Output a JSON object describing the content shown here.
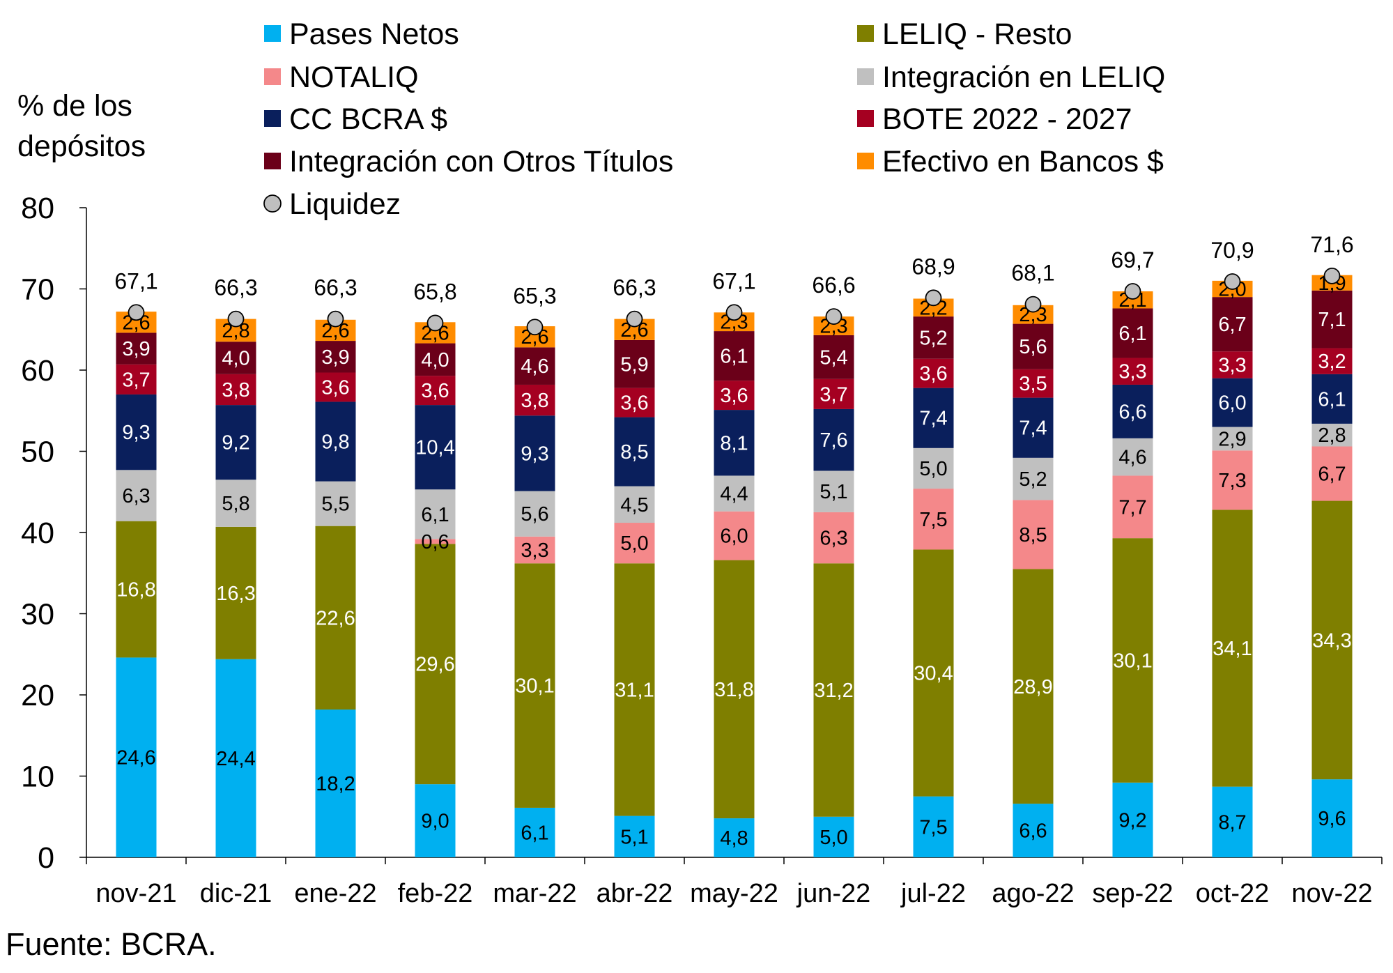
{
  "chart_data": {
    "type": "bar",
    "stacked": true,
    "ylabel": "% de los depósitos",
    "ylabel_lines": [
      "% de los",
      "depósitos"
    ],
    "ylim": [
      0,
      80
    ],
    "yticks": [
      0,
      10,
      20,
      30,
      40,
      50,
      60,
      70,
      80
    ],
    "grid": false,
    "legend_placement": "top",
    "source": "Fuente: BCRA.",
    "categories": [
      "nov-21",
      "dic-21",
      "ene-22",
      "feb-22",
      "mar-22",
      "abr-22",
      "may-22",
      "jun-22",
      "jul-22",
      "ago-22",
      "sep-22",
      "oct-22",
      "nov-22"
    ],
    "series": [
      {
        "name": "Pases Netos",
        "color": "#00B0F0",
        "label_color": "#000000",
        "values": [
          24.6,
          24.4,
          18.2,
          9.0,
          6.1,
          5.1,
          4.8,
          5.0,
          7.5,
          6.6,
          9.2,
          8.7,
          9.6
        ]
      },
      {
        "name": "LELIQ - Resto",
        "color": "#7F7F00",
        "label_color": "#FFFFFF",
        "values": [
          16.8,
          16.3,
          22.6,
          29.6,
          30.1,
          31.1,
          31.8,
          31.2,
          30.4,
          28.9,
          30.1,
          34.1,
          34.3
        ]
      },
      {
        "name": "NOTALIQ",
        "color": "#F4888A",
        "label_color": "#000000",
        "values": [
          null,
          null,
          null,
          0.6,
          3.3,
          5.0,
          6.0,
          6.3,
          7.5,
          8.5,
          7.7,
          7.3,
          6.7
        ]
      },
      {
        "name": "Integración en LELIQ",
        "color": "#C0C0C0",
        "label_color": "#000000",
        "values": [
          6.3,
          5.8,
          5.5,
          6.1,
          5.6,
          4.5,
          4.4,
          5.1,
          5.0,
          5.2,
          4.6,
          2.9,
          2.8
        ]
      },
      {
        "name": "CC BCRA $",
        "color": "#0A1F5C",
        "label_color": "#FFFFFF",
        "values": [
          9.3,
          9.2,
          9.8,
          10.4,
          9.3,
          8.5,
          8.1,
          7.6,
          7.4,
          7.4,
          6.6,
          6.0,
          6.1
        ]
      },
      {
        "name": "BOTE 2022 - 2027",
        "color": "#A50021",
        "label_color": "#FFFFFF",
        "values": [
          3.7,
          3.8,
          3.6,
          3.6,
          3.8,
          3.6,
          3.6,
          3.7,
          3.6,
          3.5,
          3.3,
          3.3,
          3.2
        ]
      },
      {
        "name": "Integración con Otros Títulos",
        "color": "#6B0019",
        "label_color": "#FFFFFF",
        "values": [
          3.9,
          4.0,
          3.9,
          4.0,
          4.6,
          5.9,
          6.1,
          5.4,
          5.2,
          5.6,
          6.1,
          6.7,
          7.1
        ]
      },
      {
        "name": "Efectivo en Bancos $",
        "color": "#FF8C00",
        "label_color": "#000000",
        "values": [
          2.6,
          2.8,
          2.6,
          2.6,
          2.6,
          2.6,
          2.3,
          2.3,
          2.2,
          2.3,
          2.1,
          2.0,
          1.9
        ]
      }
    ],
    "liquidez": {
      "name": "Liquidez",
      "type": "scatter",
      "marker": "circle",
      "color": "#BFBFBF",
      "values": [
        67.1,
        66.3,
        66.3,
        65.8,
        65.3,
        66.3,
        67.1,
        66.6,
        68.9,
        68.1,
        69.7,
        70.9,
        71.6
      ]
    },
    "legend_order": [
      0,
      1,
      2,
      3,
      4,
      5,
      6,
      7
    ]
  }
}
